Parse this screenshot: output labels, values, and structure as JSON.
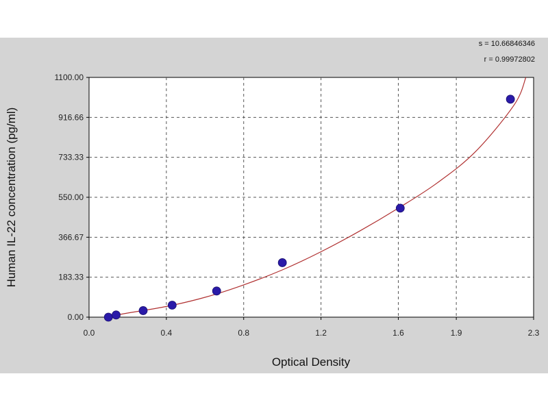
{
  "chart_data": {
    "type": "scatter",
    "xlabel": "Optical Density",
    "ylabel": "Human IL-22 concentration (pg/ml)",
    "xlim": [
      0.0,
      2.3
    ],
    "ylim": [
      0.0,
      1100.0
    ],
    "x_ticks": [
      0.0,
      0.4,
      0.8,
      1.2,
      1.6,
      1.9,
      2.3
    ],
    "x_tick_labels": [
      "0.0",
      "0.4",
      "0.8",
      "1.2",
      "1.6",
      "1.9",
      "2.3"
    ],
    "y_ticks": [
      0,
      183.33,
      366.67,
      550,
      733.33,
      916.66,
      1100
    ],
    "y_tick_labels": [
      "0.00",
      "183.33",
      "366.67",
      "550.00",
      "733.33",
      "916.66",
      "1100.00"
    ],
    "grid": true,
    "series": [
      {
        "type": "scatter",
        "x": [
          0.1,
          0.14,
          0.28,
          0.43,
          0.66,
          1.0,
          1.61,
          2.18
        ],
        "y": [
          0,
          10,
          30,
          55,
          120,
          250,
          500,
          1000
        ]
      },
      {
        "type": "line",
        "x": [
          0.08,
          0.2,
          0.4,
          0.6,
          0.8,
          1.0,
          1.2,
          1.4,
          1.6,
          1.8,
          2.0,
          2.2,
          2.26
        ],
        "y": [
          0,
          19,
          49,
          91,
          148,
          217,
          300,
          395,
          500,
          615,
          760,
          975,
          1100
        ]
      }
    ],
    "stats": {
      "s_line": "s = 10.66846346",
      "r_line": "r = 0.99972802"
    },
    "colors": {
      "marker": "#2a1aa8",
      "curve": "#b03030",
      "grid": "#555555",
      "frame": "#d4d4d4",
      "plot_bg": "#ffffff"
    }
  }
}
